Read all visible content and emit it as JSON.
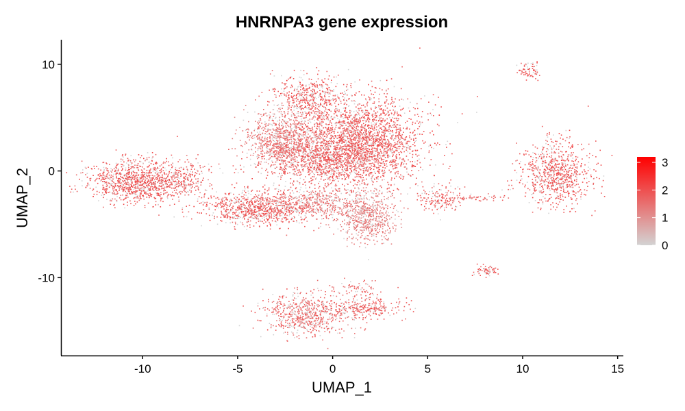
{
  "chart_data": {
    "type": "scatter",
    "title": "HNRNPA3 gene expression",
    "xlabel": "UMAP_1",
    "ylabel": "UMAP_2",
    "xlim": [
      -14.3,
      15.3
    ],
    "ylim": [
      -17.3,
      12.3
    ],
    "x_ticks": [
      {
        "value": -10,
        "label": "-10"
      },
      {
        "value": -5,
        "label": "-5"
      },
      {
        "value": 0,
        "label": "0"
      },
      {
        "value": 5,
        "label": "5"
      },
      {
        "value": 10,
        "label": "10"
      },
      {
        "value": 15,
        "label": "15"
      }
    ],
    "y_ticks": [
      {
        "value": 10,
        "label": "10"
      },
      {
        "value": 0,
        "label": "0"
      },
      {
        "value": -10,
        "label": "-10"
      }
    ],
    "grid": false,
    "legend": {
      "position": "right",
      "color_low": "#d3d3d3",
      "color_high": "#ff0000",
      "range": [
        0,
        3.2
      ],
      "ticks": [
        {
          "value": 0,
          "label": "0"
        },
        {
          "value": 1,
          "label": "1"
        },
        {
          "value": 2,
          "label": "2"
        },
        {
          "value": 3,
          "label": "3"
        }
      ]
    },
    "clusters": [
      {
        "name": "main-top-right",
        "cx": 1.5,
        "cy": 3.0,
        "sx": 1.6,
        "sy": 2.0,
        "n": 2200,
        "expr": 1.9
      },
      {
        "name": "main-left-upper",
        "cx": -2.6,
        "cy": 3.0,
        "sx": 1.0,
        "sy": 1.3,
        "n": 900,
        "expr": 1.5
      },
      {
        "name": "main-mid",
        "cx": -0.5,
        "cy": 1.0,
        "sx": 1.7,
        "sy": 1.2,
        "n": 1100,
        "expr": 1.8
      },
      {
        "name": "top-bump",
        "cx": -1.2,
        "cy": 7.0,
        "sx": 1.0,
        "sy": 1.0,
        "n": 450,
        "expr": 1.9
      },
      {
        "name": "left-blob",
        "cx": -10.5,
        "cy": -1.0,
        "sx": 1.2,
        "sy": 1.0,
        "n": 1000,
        "expr": 1.9
      },
      {
        "name": "left-ext",
        "cx": -8.0,
        "cy": -0.7,
        "sx": 0.9,
        "sy": 0.8,
        "n": 280,
        "expr": 1.7
      },
      {
        "name": "mid-bridge",
        "cx": -4.0,
        "cy": -3.5,
        "sx": 1.4,
        "sy": 0.8,
        "n": 900,
        "expr": 1.9
      },
      {
        "name": "lower-center",
        "cx": 1.8,
        "cy": -4.2,
        "sx": 0.8,
        "sy": 1.2,
        "n": 650,
        "expr": 1.3
      },
      {
        "name": "lower-center-left",
        "cx": -1.0,
        "cy": -3.0,
        "sx": 1.3,
        "sy": 0.7,
        "n": 450,
        "expr": 1.5
      },
      {
        "name": "right-blob",
        "cx": 11.7,
        "cy": -0.3,
        "sx": 0.9,
        "sy": 1.5,
        "n": 800,
        "expr": 1.9
      },
      {
        "name": "top-right-small",
        "cx": 10.3,
        "cy": 9.4,
        "sx": 0.3,
        "sy": 0.4,
        "n": 70,
        "expr": 1.9
      },
      {
        "name": "small-mid-right",
        "cx": 8.1,
        "cy": -9.4,
        "sx": 0.35,
        "sy": 0.25,
        "n": 60,
        "expr": 1.9
      },
      {
        "name": "mid-right-streak",
        "cx": 5.6,
        "cy": -2.5,
        "sx": 0.6,
        "sy": 0.6,
        "n": 150,
        "expr": 1.8
      },
      {
        "name": "streak",
        "cx": 7.8,
        "cy": -2.5,
        "sx": 1.1,
        "sy": 0.15,
        "n": 60,
        "expr": 1.7
      },
      {
        "name": "bottom-left",
        "cx": -1.5,
        "cy": -13.5,
        "sx": 1.1,
        "sy": 1.0,
        "n": 650,
        "expr": 1.7
      },
      {
        "name": "bottom-right",
        "cx": 1.5,
        "cy": -12.8,
        "sx": 1.0,
        "sy": 0.45,
        "n": 280,
        "expr": 1.8
      },
      {
        "name": "bottom-thin",
        "cx": 1.0,
        "cy": -11.0,
        "sx": 0.8,
        "sy": 0.4,
        "n": 70,
        "expr": 1.7
      }
    ]
  }
}
